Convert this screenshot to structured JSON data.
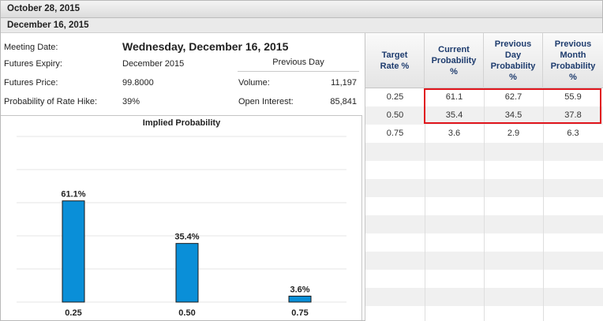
{
  "header": {
    "date": "October 28, 2015",
    "meeting": "December 16, 2015"
  },
  "info": {
    "meeting_date_label": "Meeting Date:",
    "meeting_date_value": "Wednesday, December 16, 2015",
    "expiry_label": "Futures Expiry:",
    "expiry_value": "December 2015",
    "price_label": "Futures Price:",
    "price_value": "99.8000",
    "hike_label": "Probability of Rate Hike:",
    "hike_value": "39%",
    "previous_day_title": "Previous Day",
    "volume_label": "Volume:",
    "volume_value": "11,197",
    "oi_label": "Open Interest:",
    "oi_value": "85,841"
  },
  "chart_data": {
    "type": "bar",
    "title": "Implied Probability",
    "categories": [
      "0.25",
      "0.50",
      "0.75"
    ],
    "values": [
      61.1,
      35.4,
      3.6
    ],
    "data_labels": [
      "61.1%",
      "35.4%",
      "3.6%"
    ],
    "bar_color": "#0a8fd8",
    "ylim": [
      0,
      100
    ],
    "grid": true
  },
  "table": {
    "columns": [
      "Target Rate %",
      "Current Probability %",
      "Previous Day Probability %",
      "Previous Month Probability %"
    ],
    "rows": [
      [
        "0.25",
        "61.1",
        "62.7",
        "55.9"
      ],
      [
        "0.50",
        "35.4",
        "34.5",
        "37.8"
      ],
      [
        "0.75",
        "3.6",
        "2.9",
        "6.3"
      ]
    ],
    "highlight_color": "#e0141c"
  }
}
